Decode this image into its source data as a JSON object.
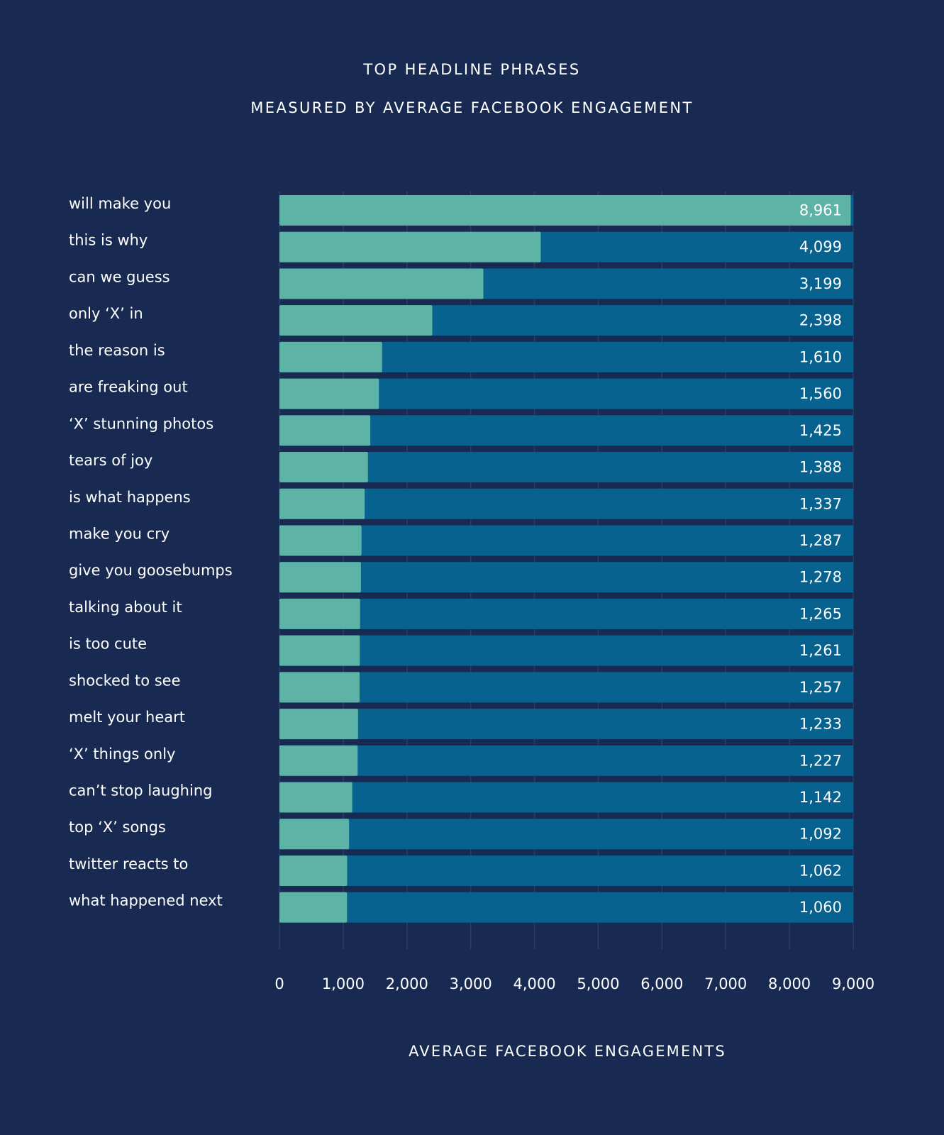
{
  "chart_data": {
    "type": "bar",
    "orientation": "horizontal",
    "title": "TOP HEADLINE PHRASES",
    "subtitle": "MEASURED BY AVERAGE FACEBOOK ENGAGEMENT",
    "xlabel": "AVERAGE FACEBOOK ENGAGEMENTS",
    "ylabel": "",
    "xlim": [
      0,
      9000
    ],
    "x_ticks": [
      0,
      1000,
      2000,
      3000,
      4000,
      5000,
      6000,
      7000,
      8000,
      9000
    ],
    "x_tick_labels": [
      "0",
      "1,000",
      "2,000",
      "3,000",
      "4,000",
      "5,000",
      "6,000",
      "7,000",
      "8,000",
      "9,000"
    ],
    "grid": "vertical",
    "categories": [
      "will make you",
      "this is why",
      "can we guess",
      "only ‘X’ in",
      "the reason is",
      "are freaking out",
      "‘X’ stunning photos",
      "tears of joy",
      "is what happens",
      "make you cry",
      "give you goosebumps",
      "talking about it",
      "is too cute",
      "shocked to see",
      "melt your heart",
      "‘X’ things only",
      "can’t stop laughing",
      "top ‘X’ songs",
      "twitter reacts to",
      "what happened next"
    ],
    "values": [
      8961,
      4099,
      3199,
      2398,
      1610,
      1560,
      1425,
      1388,
      1337,
      1287,
      1278,
      1265,
      1261,
      1257,
      1233,
      1227,
      1142,
      1092,
      1062,
      1060
    ],
    "value_labels": [
      "8,961",
      "4,099",
      "3,199",
      "2,398",
      "1,610",
      "1,560",
      "1,425",
      "1,388",
      "1,337",
      "1,287",
      "1,278",
      "1,265",
      "1,261",
      "1,257",
      "1,233",
      "1,227",
      "1,142",
      "1,092",
      "1,062",
      "1,060"
    ],
    "colors": {
      "background": "#182a52",
      "bar_value": "#5db3a6",
      "bar_track": "#07628f",
      "grid": "#2b3d66",
      "text": "#ffffff"
    }
  }
}
